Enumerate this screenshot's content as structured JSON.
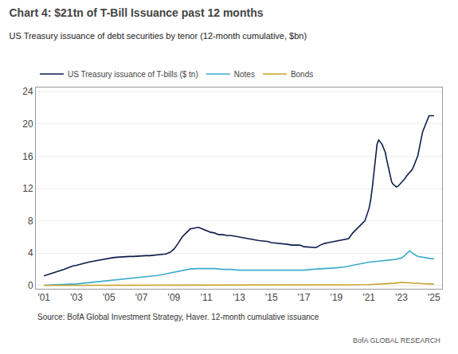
{
  "chart_data": {
    "type": "line",
    "title": "Chart 4: $21tn of T-Bill Issuance past 12 months",
    "subtitle": "US Treasury issuance of debt securities by tenor (12-month cumulative, $bn)",
    "annotations": [
      "Source: BofA Global Investment Strategy, Haver. 12-month cumulative issuance",
      "BofA GLOBAL RESEARCH"
    ],
    "xlim": [
      2000.5,
      2025.5
    ],
    "xticks": [
      {
        "value": 2001,
        "label": "'01"
      },
      {
        "value": 2003,
        "label": "'03"
      },
      {
        "value": 2005,
        "label": "'05"
      },
      {
        "value": 2007,
        "label": "'07"
      },
      {
        "value": 2009,
        "label": "'09"
      },
      {
        "value": 2011,
        "label": "'11"
      },
      {
        "value": 2013,
        "label": "'13"
      },
      {
        "value": 2015,
        "label": "'15"
      },
      {
        "value": 2017,
        "label": "'17"
      },
      {
        "value": 2019,
        "label": "'19"
      },
      {
        "value": 2021,
        "label": "'21"
      },
      {
        "value": 2023,
        "label": "'23"
      },
      {
        "value": 2025,
        "label": "'25"
      }
    ],
    "ylim": [
      -0.4,
      24.5
    ],
    "yticks": [
      0,
      4,
      8,
      12,
      16,
      20,
      24
    ],
    "grid": true,
    "legend": "top left",
    "series": [
      {
        "name": "US Treasury issuance of T-bills ($ tn)",
        "color": "#0d1b4b",
        "x": [
          2001,
          2001.25,
          2001.5,
          2001.75,
          2002,
          2002.25,
          2002.5,
          2002.75,
          2003,
          2003.25,
          2003.5,
          2003.75,
          2004,
          2004.25,
          2004.5,
          2004.75,
          2005,
          2005.25,
          2005.5,
          2005.75,
          2006,
          2006.25,
          2006.5,
          2006.75,
          2007,
          2007.25,
          2007.5,
          2007.75,
          2008,
          2008.25,
          2008.5,
          2008.75,
          2009,
          2009.25,
          2009.5,
          2009.75,
          2010,
          2010.25,
          2010.5,
          2010.75,
          2011,
          2011.25,
          2011.5,
          2011.75,
          2012,
          2012.25,
          2012.5,
          2012.75,
          2013,
          2013.25,
          2013.5,
          2013.75,
          2014,
          2014.25,
          2014.5,
          2014.75,
          2015,
          2015.25,
          2015.5,
          2015.75,
          2016,
          2016.25,
          2016.5,
          2016.75,
          2017,
          2017.25,
          2017.5,
          2017.75,
          2018,
          2018.25,
          2018.5,
          2018.75,
          2019,
          2019.25,
          2019.5,
          2019.75,
          2020,
          2020.25,
          2020.5,
          2020.75,
          2021,
          2021.1,
          2021.2,
          2021.3,
          2021.4,
          2021.5,
          2021.6,
          2021.7,
          2021.8,
          2021.9,
          2022,
          2022.1,
          2022.2,
          2022.3,
          2022.4,
          2022.5,
          2022.6,
          2022.7,
          2022.8,
          2022.9,
          2023,
          2023.1,
          2023.2,
          2023.3,
          2023.4,
          2023.5,
          2023.6,
          2023.7,
          2023.8,
          2023.9,
          2024,
          2024.1,
          2024.2,
          2024.3,
          2024.4,
          2024.5,
          2024.6,
          2024.7,
          2024.8,
          2024.9,
          2025
        ],
        "values": [
          1.2,
          1.35,
          1.5,
          1.65,
          1.8,
          2.0,
          2.2,
          2.4,
          2.5,
          2.65,
          2.8,
          2.9,
          3.0,
          3.1,
          3.2,
          3.3,
          3.4,
          3.45,
          3.5,
          3.55,
          3.6,
          3.6,
          3.6,
          3.65,
          3.7,
          3.7,
          3.7,
          3.75,
          3.8,
          3.85,
          3.9,
          4.1,
          4.5,
          5.2,
          6.0,
          6.5,
          7.0,
          7.1,
          7.2,
          7.0,
          6.8,
          6.6,
          6.5,
          6.3,
          6.3,
          6.2,
          6.2,
          6.1,
          6.0,
          5.9,
          5.8,
          5.7,
          5.6,
          5.55,
          5.5,
          5.45,
          5.3,
          5.25,
          5.2,
          5.2,
          5.1,
          5.0,
          5.0,
          5.0,
          4.8,
          4.75,
          4.7,
          4.7,
          5.0,
          5.2,
          5.3,
          5.4,
          5.5,
          5.6,
          5.7,
          5.8,
          6.5,
          7.0,
          7.5,
          8.0,
          9.5,
          10.5,
          12.0,
          14.0,
          16.0,
          17.5,
          18.0,
          17.8,
          17.5,
          17.0,
          16.5,
          15.5,
          14.5,
          13.5,
          12.8,
          12.5,
          12.3,
          12.2,
          12.3,
          12.5,
          12.8,
          13.0,
          13.2,
          13.5,
          13.8,
          14.0,
          14.2,
          14.5,
          15.0,
          15.5,
          16.0,
          17.0,
          18.0,
          19.0,
          19.5,
          20.0,
          20.5,
          21.0,
          21.0,
          21.0,
          21.0
        ]
      },
      {
        "name": "Notes",
        "color": "#3aaccc",
        "x": [
          2001,
          2001.5,
          2002,
          2002.5,
          2003,
          2003.5,
          2004,
          2004.5,
          2005,
          2005.5,
          2006,
          2006.5,
          2007,
          2007.5,
          2008,
          2008.5,
          2009,
          2009.5,
          2010,
          2010.5,
          2011,
          2011.5,
          2012,
          2012.5,
          2013,
          2013.5,
          2014,
          2014.5,
          2015,
          2015.5,
          2016,
          2016.5,
          2017,
          2017.5,
          2018,
          2018.5,
          2019,
          2019.5,
          2020,
          2020.5,
          2021,
          2021.5,
          2022,
          2022.5,
          2023,
          2023.25,
          2023.5,
          2023.75,
          2024,
          2024.25,
          2024.5,
          2024.75,
          2025
        ],
        "values": [
          0.05,
          0.07,
          0.1,
          0.15,
          0.2,
          0.3,
          0.4,
          0.55,
          0.65,
          0.75,
          0.85,
          0.95,
          1.05,
          1.15,
          1.25,
          1.45,
          1.65,
          1.85,
          2.05,
          2.1,
          2.1,
          2.1,
          2.0,
          2.0,
          1.9,
          1.9,
          1.9,
          1.9,
          1.9,
          1.9,
          1.9,
          1.9,
          1.9,
          2.0,
          2.05,
          2.1,
          2.2,
          2.3,
          2.5,
          2.7,
          2.9,
          3.0,
          3.1,
          3.2,
          3.4,
          3.8,
          4.3,
          3.9,
          3.6,
          3.5,
          3.4,
          3.35,
          3.3
        ]
      },
      {
        "name": "Bonds",
        "color": "#c9a227",
        "x": [
          2001,
          2002,
          2003,
          2004,
          2005,
          2006,
          2007,
          2008,
          2009,
          2010,
          2011,
          2012,
          2013,
          2014,
          2015,
          2016,
          2017,
          2018,
          2019,
          2020,
          2021,
          2022,
          2022.5,
          2023,
          2023.5,
          2024,
          2024.5,
          2025
        ],
        "values": [
          0.02,
          0.02,
          0.02,
          0.03,
          0.04,
          0.04,
          0.04,
          0.05,
          0.05,
          0.06,
          0.06,
          0.06,
          0.07,
          0.07,
          0.07,
          0.07,
          0.07,
          0.08,
          0.08,
          0.09,
          0.12,
          0.18,
          0.28,
          0.38,
          0.35,
          0.28,
          0.22,
          0.18
        ]
      }
    ]
  }
}
